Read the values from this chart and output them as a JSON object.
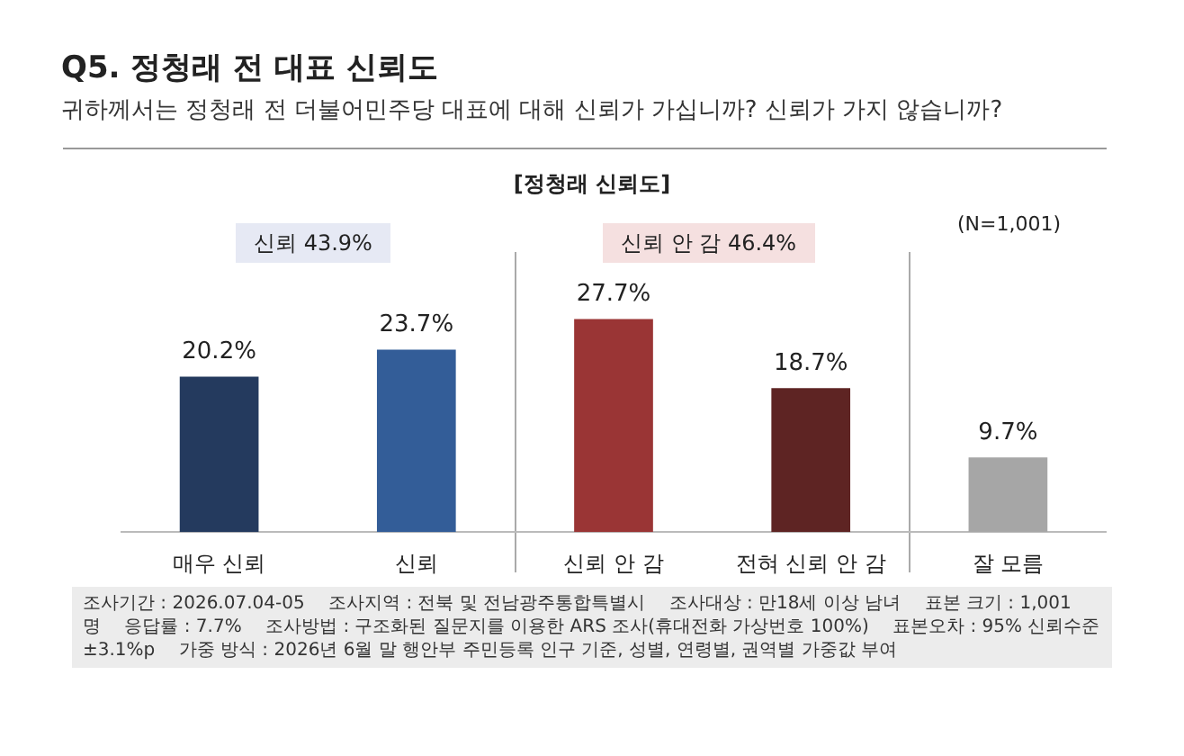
{
  "chart_data": {
    "type": "bar",
    "title": "Q5. 정청래 전 대표 신뢰도",
    "subtitle": "귀하께서는 정청래 전 더불어민주당 대표에 대해 신뢰가 가십니까? 신뢰가 가지 않습니까?",
    "categories": [
      "매우 신뢰",
      "신뢰",
      "신뢰 안 감",
      "전혀 신뢰 안 감",
      "잘 모름"
    ],
    "values": [
      20.2,
      23.7,
      27.7,
      18.7,
      9.7
    ],
    "colors": [
      "#243a5e",
      "#335d98",
      "#9a3535",
      "#5e2423",
      "#a6a6a6"
    ],
    "data_labels": true,
    "value_labels": [
      "20.2%",
      "23.7%",
      "27.7%",
      "18.7%",
      "9.7%"
    ],
    "grid": false,
    "legend": false,
    "annotations": [
      "[정청래 신뢰도]",
      "신뢰 43.9%",
      "신뢰 안 감 46.4%",
      "(N=1,001)",
      "조사기간 : 2026.07.04-05",
      "조사지역 : 전북 및 전남광주통합특별시",
      "조사대상 : 만18세 이상 남녀",
      "표본 크기 : 1,001명",
      "응답률 : 7.7%",
      "조사방법 : 구조화된 질문지를 이용한 ARS 조사(휴대전화 가상번호 100%)",
      "표본오차 : 95% 신뢰수준 ±3.1%p",
      "가중 방식 : 2026년 6월 말 행안부 주민등록 인구 기준, 성별, 연령별, 권역별 가중값 부여"
    ]
  }
}
